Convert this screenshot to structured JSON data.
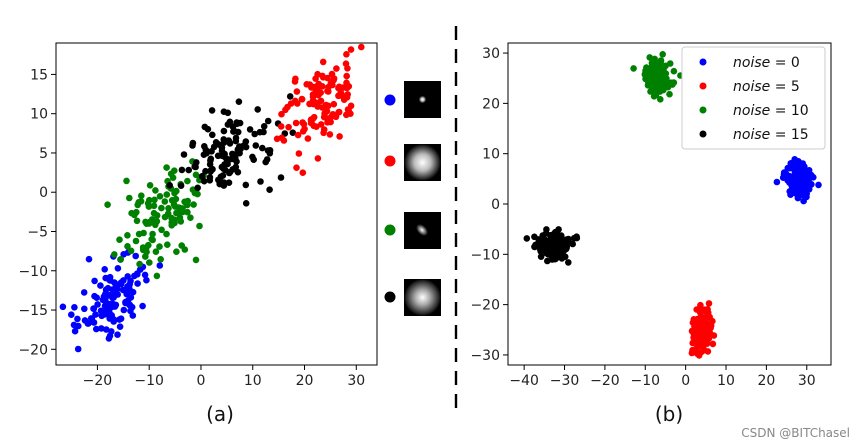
{
  "chart_data": [
    {
      "type": "scatter",
      "label": "(a)",
      "xlim": [
        -28,
        34
      ],
      "ylim": [
        -22,
        19
      ],
      "xticks": [
        "−20",
        "−10",
        "0",
        "10",
        "20",
        "30"
      ],
      "yticks": [
        "−20",
        "−15",
        "−10",
        "−5",
        "0",
        "5",
        "10",
        "15"
      ],
      "xtick_values": [
        -20,
        -10,
        0,
        10,
        20,
        30
      ],
      "ytick_values": [
        -20,
        -15,
        -10,
        -5,
        0,
        5,
        10,
        15
      ],
      "grid": false,
      "series": [
        {
          "color": "#0000ff",
          "center": [
            -17,
            -13
          ],
          "spread": [
            5,
            3.5
          ],
          "count": 120
        },
        {
          "color": "#008000",
          "center": [
            -8,
            -3.5
          ],
          "spread": [
            6,
            4
          ],
          "count": 110
        },
        {
          "color": "#000000",
          "center": [
            5,
            5
          ],
          "spread": [
            6,
            3.5
          ],
          "count": 120
        },
        {
          "color": "#ff0000",
          "center": [
            23,
            11.5
          ],
          "spread": [
            5,
            3.5
          ],
          "count": 120
        }
      ]
    },
    {
      "type": "scatter",
      "label": "(b)",
      "xlim": [
        -44,
        36
      ],
      "ylim": [
        -32,
        32
      ],
      "xticks": [
        "−40",
        "−30",
        "−20",
        "−10",
        "0",
        "10",
        "20",
        "30"
      ],
      "yticks": [
        "−30",
        "−20",
        "−10",
        "0",
        "10",
        "20",
        "30"
      ],
      "xtick_values": [
        -40,
        -30,
        -20,
        -10,
        0,
        10,
        20,
        30
      ],
      "ytick_values": [
        -30,
        -20,
        -10,
        0,
        10,
        20,
        30
      ],
      "grid": false,
      "legend_position": "top-right",
      "series": [
        {
          "name": "noise = 0",
          "color": "#0000ff",
          "center": [
            28,
            5
          ],
          "spread": [
            3,
            3
          ],
          "count": 150
        },
        {
          "name": "noise = 5",
          "color": "#ff0000",
          "center": [
            4,
            -25
          ],
          "spread": [
            2.3,
            4
          ],
          "count": 150
        },
        {
          "name": "noise = 10",
          "color": "#008000",
          "center": [
            -7,
            25
          ],
          "spread": [
            2.8,
            3
          ],
          "count": 150
        },
        {
          "name": "noise = 15",
          "color": "#000000",
          "center": [
            -33,
            -8
          ],
          "spread": [
            4,
            2.3
          ],
          "count": 150
        }
      ]
    }
  ],
  "legend_entries": [
    {
      "name": "noise",
      "value": "0",
      "color": "#0000ff"
    },
    {
      "name": "noise",
      "value": "5",
      "color": "#ff0000"
    },
    {
      "name": "noise",
      "value": "10",
      "color": "#008000"
    },
    {
      "name": "noise",
      "value": "15",
      "color": "#000000"
    }
  ],
  "kernel_markers": [
    {
      "color": "#0000ff",
      "icon": "small-point-kernel"
    },
    {
      "color": "#ff0000",
      "icon": "large-round-blur-kernel"
    },
    {
      "color": "#008000",
      "icon": "elongated-diagonal-blur-kernel"
    },
    {
      "color": "#000000",
      "icon": "medium-round-blur-kernel"
    }
  ],
  "panel_labels": [
    "(a)",
    "(b)"
  ],
  "watermark": "CSDN @BITChasel"
}
